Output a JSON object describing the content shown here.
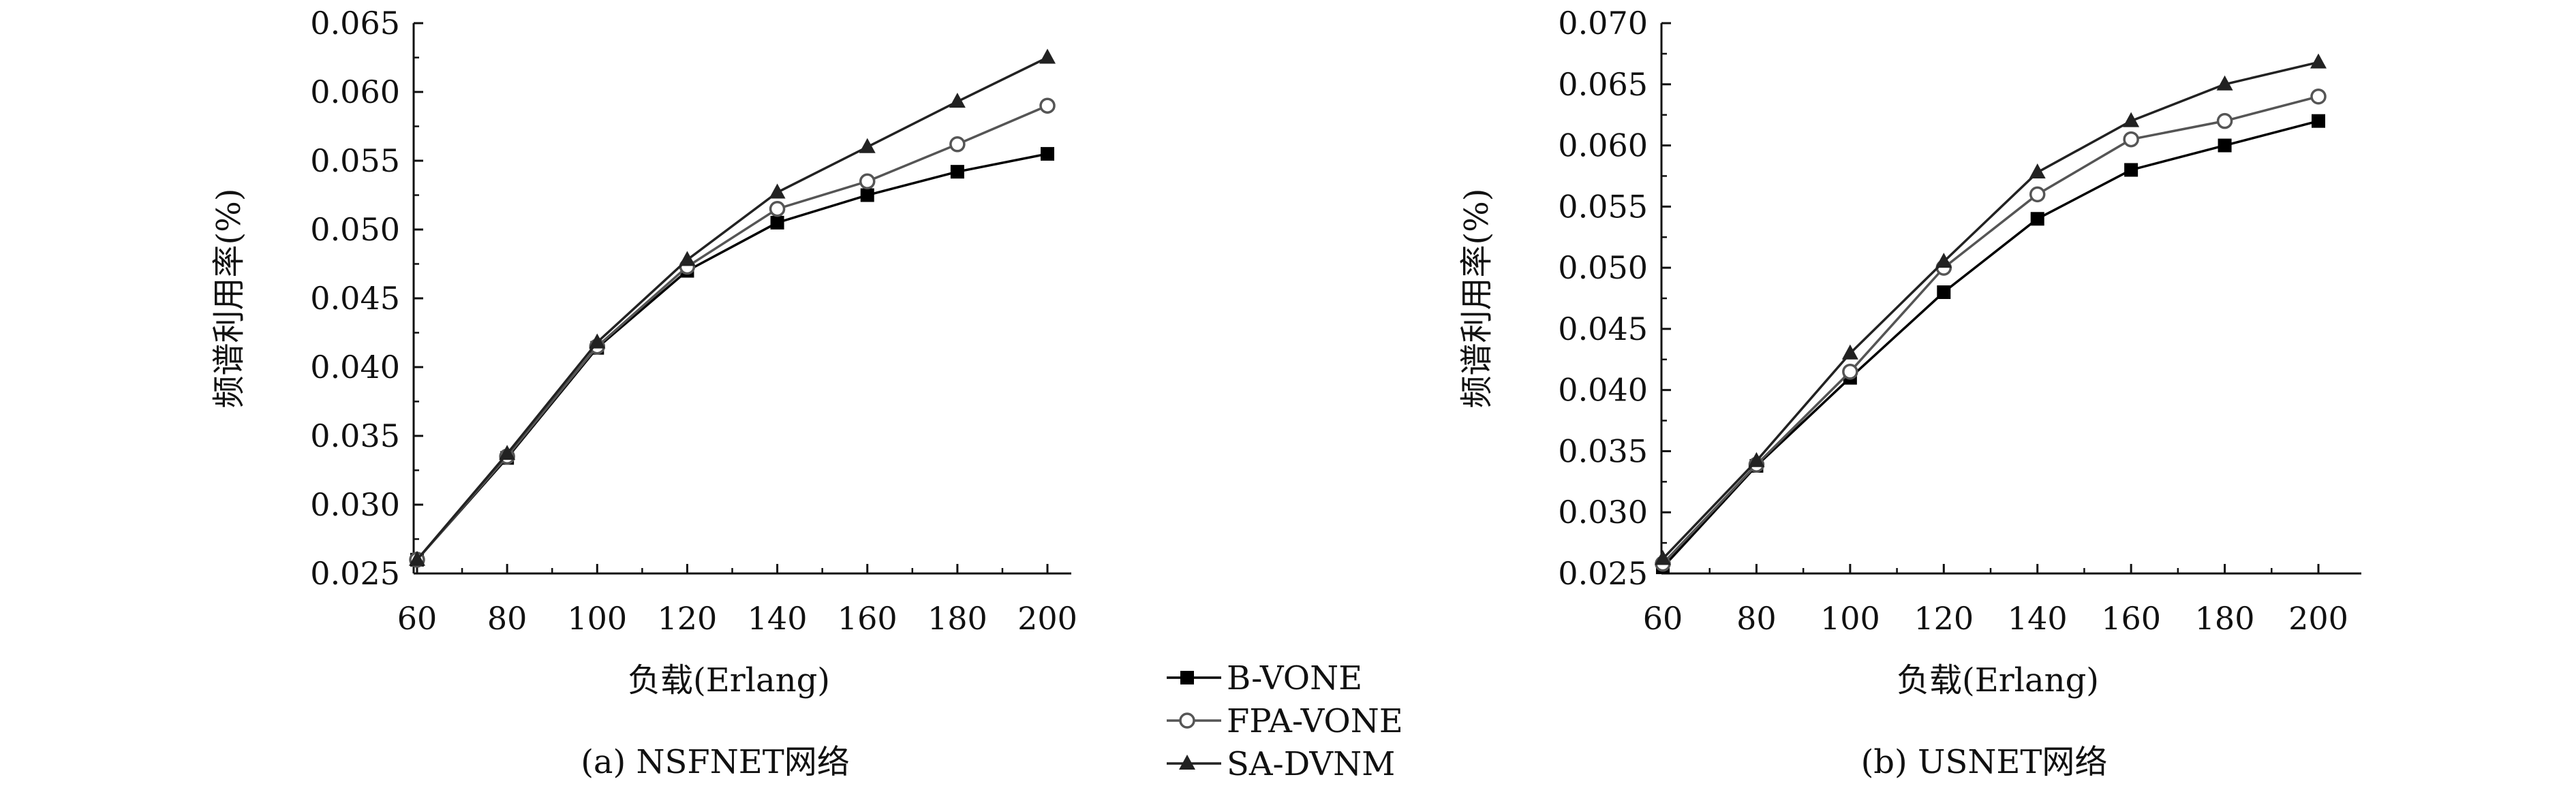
{
  "chart_data": [
    {
      "type": "line",
      "caption": "(a) NSFNET网络",
      "xlabel": "负载(Erlang)",
      "ylabel": "频谱利用率(%)",
      "x": [
        60,
        80,
        100,
        120,
        140,
        160,
        180,
        200
      ],
      "x_tick_labels": [
        "60",
        "80",
        "100",
        "120",
        "140",
        "160",
        "180",
        "200"
      ],
      "ylim": [
        0.025,
        0.065
      ],
      "y_tick_labels": [
        "0.025",
        "0.030",
        "0.035",
        "0.040",
        "0.045",
        "0.050",
        "0.055",
        "0.060",
        "0.065"
      ],
      "grid": false,
      "series": [
        {
          "name": "B-VONE",
          "marker": "square",
          "values": [
            0.026,
            0.0334,
            0.0414,
            0.047,
            0.0505,
            0.0525,
            0.0542,
            0.0555
          ]
        },
        {
          "name": "FPA-VONE",
          "marker": "circle",
          "values": [
            0.026,
            0.0335,
            0.0415,
            0.0473,
            0.0515,
            0.0535,
            0.0562,
            0.059
          ]
        },
        {
          "name": "SA-DVNM",
          "marker": "triangle",
          "values": [
            0.026,
            0.0337,
            0.0418,
            0.0478,
            0.0527,
            0.056,
            0.0593,
            0.0625
          ]
        }
      ]
    },
    {
      "type": "line",
      "caption": "(b) USNET网络",
      "xlabel": "负载(Erlang)",
      "ylabel": "频谱利用率(%)",
      "x": [
        60,
        80,
        100,
        120,
        140,
        160,
        180,
        200
      ],
      "x_tick_labels": [
        "60",
        "80",
        "100",
        "120",
        "140",
        "160",
        "180",
        "200"
      ],
      "ylim": [
        0.025,
        0.07
      ],
      "y_tick_labels": [
        "0.025",
        "0.030",
        "0.035",
        "0.040",
        "0.045",
        "0.050",
        "0.055",
        "0.060",
        "0.065",
        "0.070"
      ],
      "grid": false,
      "series": [
        {
          "name": "B-VONE",
          "marker": "square",
          "values": [
            0.0255,
            0.0338,
            0.041,
            0.048,
            0.054,
            0.058,
            0.06,
            0.062
          ]
        },
        {
          "name": "FPA-VONE",
          "marker": "circle",
          "values": [
            0.0258,
            0.0339,
            0.0415,
            0.05,
            0.056,
            0.0605,
            0.062,
            0.064
          ]
        },
        {
          "name": "SA-DVNM",
          "marker": "triangle",
          "values": [
            0.0262,
            0.0342,
            0.043,
            0.0505,
            0.0578,
            0.062,
            0.065,
            0.0668
          ]
        }
      ]
    }
  ],
  "legend": {
    "placement": "bottom-center",
    "items": [
      {
        "label": "B-VONE",
        "marker": "square",
        "color": "#000000"
      },
      {
        "label": "FPA-VONE",
        "marker": "circle",
        "color": "#555555"
      },
      {
        "label": "SA-DVNM",
        "marker": "triangle",
        "color": "#222222"
      }
    ]
  },
  "colors": {
    "B-VONE": "#000000",
    "FPA-VONE": "#555555",
    "SA-DVNM": "#222222",
    "axis": "#111111"
  }
}
